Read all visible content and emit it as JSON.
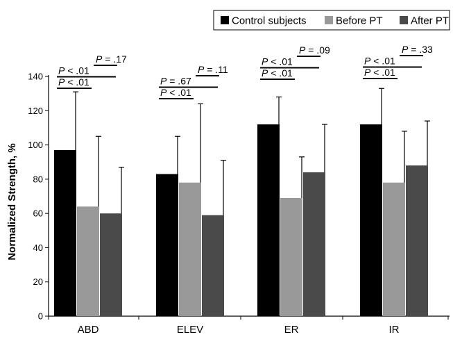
{
  "chart_data": {
    "type": "bar",
    "categories": [
      "ABD",
      "ELEV",
      "ER",
      "IR"
    ],
    "series": [
      {
        "name": "Control subjects",
        "values": [
          97,
          83,
          112,
          112
        ],
        "errors": [
          34,
          22,
          16,
          21
        ]
      },
      {
        "name": "Before PT",
        "values": [
          64,
          78,
          69,
          78
        ],
        "errors": [
          41,
          46,
          24,
          30
        ]
      },
      {
        "name": "After PT",
        "values": [
          60,
          59,
          84,
          88
        ],
        "errors": [
          27,
          32,
          28,
          26
        ]
      }
    ],
    "ylabel": "Normalized Strength, %",
    "ylim": [
      0,
      140
    ],
    "yticks": [
      0,
      20,
      40,
      60,
      80,
      100,
      120,
      140
    ],
    "legend_position": "top-right",
    "significance": [
      {
        "category": "ABD",
        "comparison": "control-after",
        "label": "P < .01"
      },
      {
        "category": "ABD",
        "comparison": "control-before",
        "label": "P < .01"
      },
      {
        "category": "ABD",
        "comparison": "before-after",
        "label": "P = .17"
      },
      {
        "category": "ELEV",
        "comparison": "control-after",
        "label": "P < .01"
      },
      {
        "category": "ELEV",
        "comparison": "control-before",
        "label": "P = .67"
      },
      {
        "category": "ELEV",
        "comparison": "before-after",
        "label": "P = .11"
      },
      {
        "category": "ER",
        "comparison": "control-after",
        "label": "P < .01"
      },
      {
        "category": "ER",
        "comparison": "control-before",
        "label": "P < .01"
      },
      {
        "category": "ER",
        "comparison": "before-after",
        "label": "P = .09"
      },
      {
        "category": "IR",
        "comparison": "control-after",
        "label": "P < .01"
      },
      {
        "category": "IR",
        "comparison": "control-before",
        "label": "P < .01"
      },
      {
        "category": "IR",
        "comparison": "before-after",
        "label": "P = .33"
      }
    ],
    "colors": {
      "Control subjects": "#000000",
      "Before PT": "#999999",
      "After PT": "#4a4a4a"
    }
  }
}
